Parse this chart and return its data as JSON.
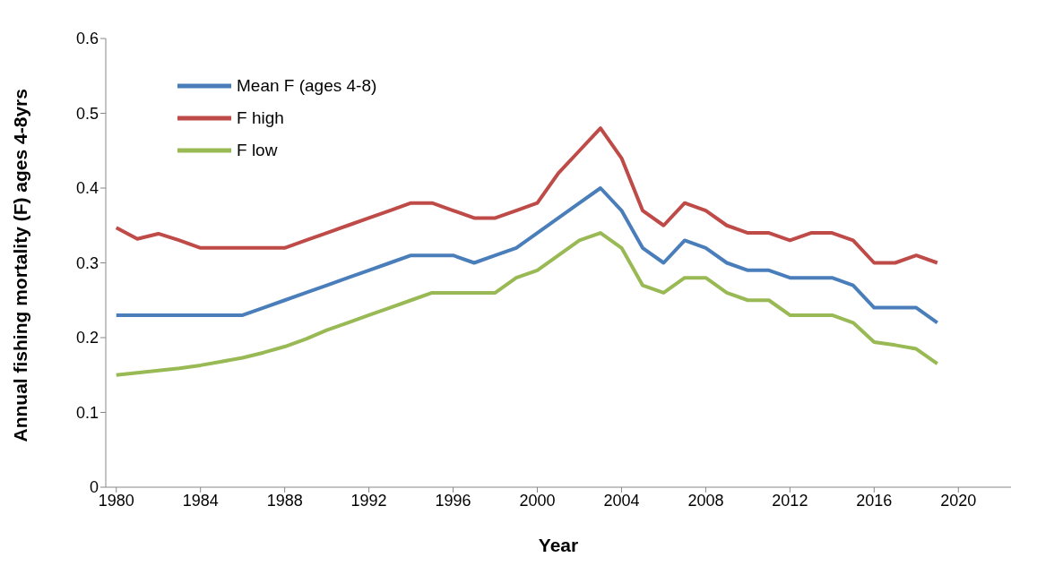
{
  "chart_data": {
    "type": "line",
    "xlabel": "Year",
    "ylabel": "Annual fishing mortality (F) ages 4-8yrs",
    "x": [
      1980,
      1981,
      1982,
      1983,
      1984,
      1985,
      1986,
      1987,
      1988,
      1989,
      1990,
      1991,
      1992,
      1993,
      1994,
      1995,
      1996,
      1997,
      1998,
      1999,
      2000,
      2001,
      2002,
      2003,
      2004,
      2005,
      2006,
      2007,
      2008,
      2009,
      2010,
      2011,
      2012,
      2013,
      2014,
      2015,
      2016,
      2017,
      2018,
      2019
    ],
    "series": [
      {
        "name": "Mean F (ages 4-8)",
        "color": "#4a7ebb",
        "values": [
          0.23,
          0.23,
          0.23,
          0.23,
          0.23,
          0.23,
          0.23,
          0.24,
          0.25,
          0.26,
          0.27,
          0.28,
          0.29,
          0.3,
          0.31,
          0.31,
          0.31,
          0.3,
          0.31,
          0.32,
          0.34,
          0.36,
          0.38,
          0.4,
          0.37,
          0.32,
          0.3,
          0.33,
          0.32,
          0.3,
          0.29,
          0.29,
          0.28,
          0.28,
          0.28,
          0.27,
          0.24,
          0.24,
          0.24,
          0.22
        ]
      },
      {
        "name": "F  high",
        "color": "#be4b48",
        "values": [
          0.347,
          0.332,
          0.339,
          0.33,
          0.32,
          0.32,
          0.32,
          0.32,
          0.32,
          0.33,
          0.34,
          0.35,
          0.36,
          0.37,
          0.38,
          0.38,
          0.37,
          0.36,
          0.36,
          0.37,
          0.38,
          0.42,
          0.45,
          0.48,
          0.44,
          0.37,
          0.35,
          0.38,
          0.37,
          0.35,
          0.34,
          0.34,
          0.33,
          0.34,
          0.34,
          0.33,
          0.3,
          0.3,
          0.31,
          0.3
        ]
      },
      {
        "name": "F low",
        "color": "#98b954",
        "values": [
          0.15,
          0.153,
          0.156,
          0.159,
          0.163,
          0.168,
          0.173,
          0.18,
          0.188,
          0.198,
          0.21,
          0.22,
          0.23,
          0.24,
          0.25,
          0.26,
          0.26,
          0.26,
          0.26,
          0.28,
          0.29,
          0.31,
          0.33,
          0.34,
          0.32,
          0.27,
          0.26,
          0.28,
          0.28,
          0.26,
          0.25,
          0.25,
          0.23,
          0.23,
          0.23,
          0.22,
          0.194,
          0.19,
          0.185,
          0.165
        ]
      }
    ],
    "xlim": [
      1979.5,
      2022.5
    ],
    "xticks": [
      1980,
      1984,
      1988,
      1992,
      1996,
      2000,
      2004,
      2008,
      2012,
      2016,
      2020
    ],
    "ylim": [
      0,
      0.6
    ],
    "yticks": [
      0,
      0.1,
      0.2,
      0.3,
      0.4,
      0.5,
      0.6
    ],
    "grid": false,
    "legend": "top left",
    "marker": "none",
    "line_style": "solid"
  }
}
